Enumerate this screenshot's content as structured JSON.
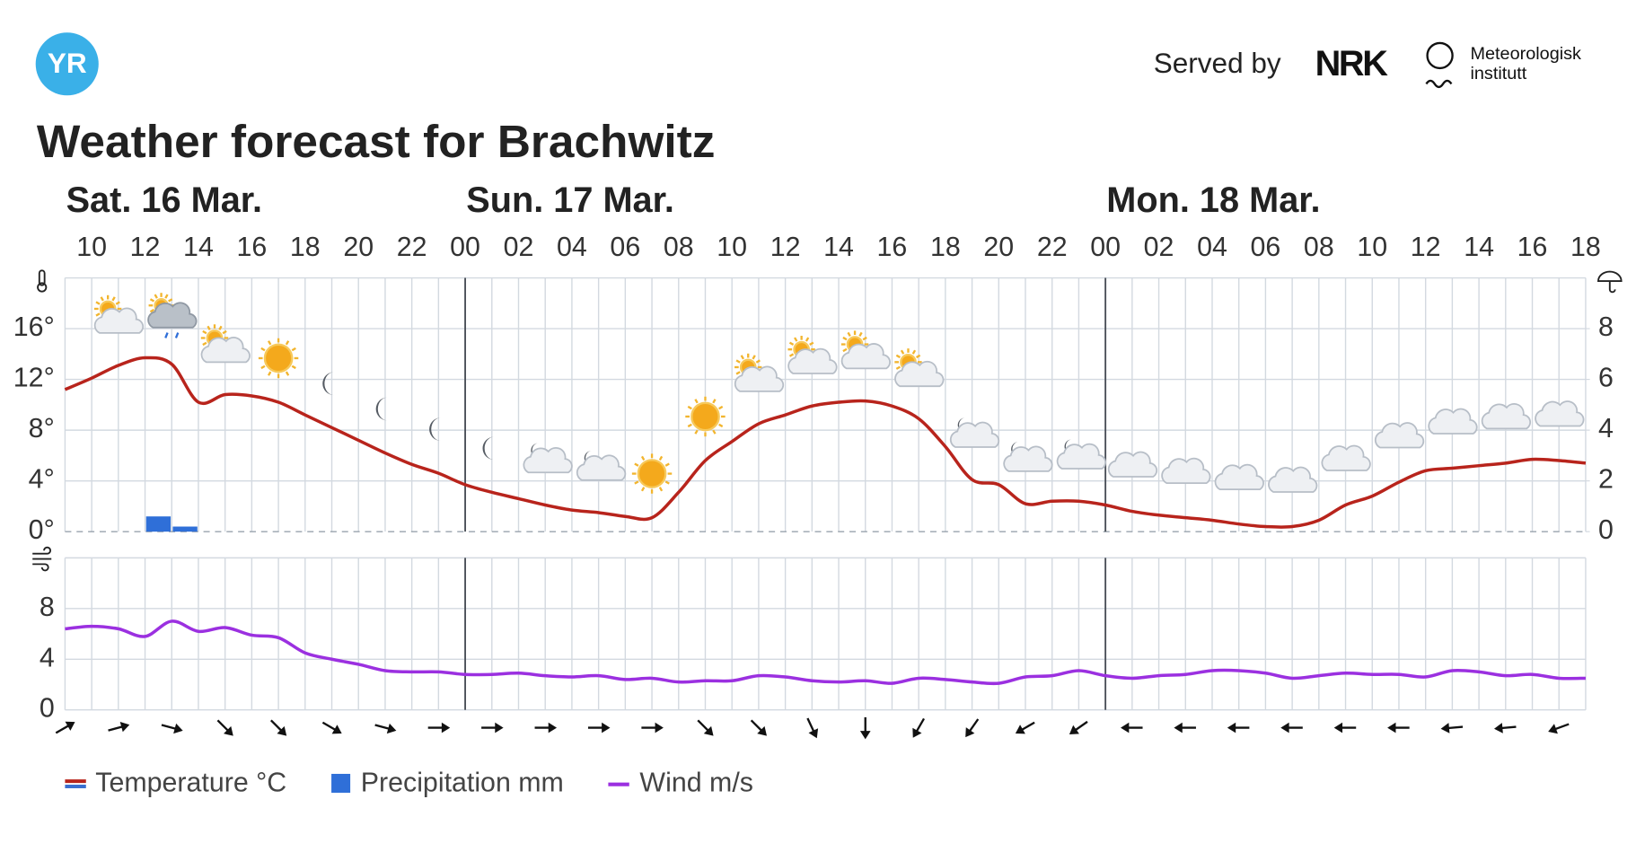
{
  "header": {
    "logo": "YR",
    "served_by": "Served by",
    "partner": "NRK",
    "institute": [
      "Meteorologisk",
      "institutt"
    ]
  },
  "chart_data": {
    "type": "line",
    "title": "Weather forecast for Brachwitz",
    "days": [
      "Sat. 16 Mar.",
      "Sun. 17 Mar.",
      "Mon. 18 Mar."
    ],
    "categories": [
      null,
      "10",
      null,
      "12",
      null,
      "14",
      null,
      "16",
      null,
      "18",
      null,
      "20",
      null,
      "22",
      null,
      "00",
      null,
      "02",
      null,
      "04",
      null,
      "06",
      null,
      "08",
      null,
      "10",
      null,
      "12",
      null,
      "14",
      null,
      "16",
      null,
      "18",
      null,
      "20",
      null,
      "22",
      null,
      "00",
      null,
      "02",
      null,
      "04",
      null,
      "06",
      null,
      "08",
      null,
      "10",
      null,
      "12",
      null,
      "14",
      null,
      "16",
      null,
      "18"
    ],
    "series": [
      {
        "name": "Temperature °C",
        "color": "#b8241c",
        "values": [
          11.2,
          12.1,
          13.1,
          13.7,
          13.2,
          10.2,
          10.8,
          10.7,
          10.2,
          9.2,
          8.2,
          7.2,
          6.2,
          5.3,
          4.6,
          3.7,
          3.1,
          2.6,
          2.1,
          1.7,
          1.5,
          1.2,
          1.1,
          3.1,
          5.6,
          7.1,
          8.5,
          9.2,
          9.9,
          10.2,
          10.3,
          9.9,
          8.9,
          6.7,
          4.1,
          3.7,
          2.2,
          2.4,
          2.4,
          2.1,
          1.6,
          1.3,
          1.1,
          0.9,
          0.6,
          0.4,
          0.4,
          0.9,
          2.1,
          2.8,
          3.9,
          4.8,
          5.0,
          5.2,
          5.4,
          5.7,
          5.6,
          5.4
        ]
      },
      {
        "name": "Precipitation mm",
        "color": "#2f6fd8",
        "type": "bar",
        "axis": "y2",
        "values": [
          0,
          0,
          0,
          0.6,
          0.2,
          0,
          0,
          0,
          0,
          0,
          0,
          0,
          0,
          0,
          0,
          0,
          0,
          0,
          0,
          0,
          0,
          0,
          0,
          0,
          0,
          0,
          0,
          0,
          0,
          0,
          0,
          0,
          0,
          0,
          0,
          0,
          0,
          0,
          0,
          0,
          0,
          0,
          0,
          0,
          0,
          0,
          0,
          0,
          0,
          0,
          0,
          0,
          0,
          0,
          0,
          0,
          0,
          null
        ]
      },
      {
        "name": "Wind m/s",
        "color": "#9b30e0",
        "axis": "y3",
        "values": [
          6.4,
          6.6,
          6.4,
          5.8,
          7.0,
          6.2,
          6.5,
          5.9,
          5.7,
          4.5,
          4.0,
          3.6,
          3.1,
          3.0,
          3.0,
          2.8,
          2.8,
          2.9,
          2.7,
          2.6,
          2.7,
          2.4,
          2.5,
          2.2,
          2.3,
          2.3,
          2.7,
          2.6,
          2.3,
          2.2,
          2.3,
          2.1,
          2.5,
          2.4,
          2.2,
          2.1,
          2.6,
          2.7,
          3.1,
          2.7,
          2.5,
          2.7,
          2.8,
          3.1,
          3.1,
          2.9,
          2.5,
          2.7,
          2.9,
          2.8,
          2.8,
          2.6,
          3.1,
          3.0,
          2.7,
          2.8,
          2.5,
          2.5
        ]
      }
    ],
    "wind_direction": [
      60,
      null,
      75,
      null,
      105,
      null,
      135,
      null,
      135,
      null,
      120,
      null,
      105,
      null,
      90,
      null,
      90,
      null,
      90,
      null,
      90,
      null,
      90,
      null,
      135,
      null,
      135,
      null,
      155,
      null,
      180,
      null,
      210,
      null,
      215,
      null,
      240,
      null,
      235,
      null,
      270,
      null,
      270,
      null,
      270,
      null,
      270,
      null,
      270,
      null,
      270,
      null,
      265,
      null,
      265,
      null,
      250,
      null
    ],
    "ylim": [
      0,
      20
    ],
    "yticks": [
      {
        "value": 0,
        "label": "0°"
      },
      {
        "value": 4,
        "label": "4°"
      },
      {
        "value": 8,
        "label": "8°"
      },
      {
        "value": 12,
        "label": "12°"
      },
      {
        "value": 16,
        "label": "16°"
      }
    ],
    "y2lim": [
      0,
      10
    ],
    "y2ticks": [
      0,
      2,
      4,
      6,
      8
    ],
    "y3lim": [
      0,
      12
    ],
    "y3ticks": [
      0,
      4,
      8
    ],
    "grid": true
  }
}
